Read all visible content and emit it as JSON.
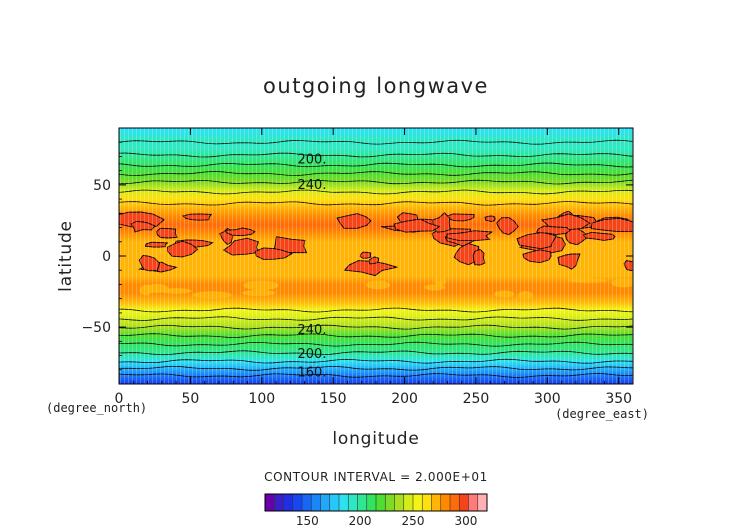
{
  "chart_data": {
    "type": "heatmap",
    "title": "outgoing longwave",
    "xlabel": "longitude",
    "ylabel": "latitude",
    "x_unit": "(degree_east)",
    "y_unit": "(degree_north)",
    "xlim": [
      0,
      360
    ],
    "ylim": [
      -90,
      90
    ],
    "x_ticks": [
      0,
      50,
      100,
      150,
      200,
      250,
      300,
      350
    ],
    "y_ticks": [
      -50,
      0,
      50
    ],
    "contour_interval_text": "CONTOUR INTERVAL = 2.000E+01",
    "contour_labels": [
      {
        "text": "200.",
        "lon": 125,
        "lat": 68
      },
      {
        "text": "240.",
        "lon": 125,
        "lat": 50
      },
      {
        "text": "240.",
        "lon": 125,
        "lat": -52
      },
      {
        "text": "200.",
        "lon": 125,
        "lat": -69
      },
      {
        "text": "160.",
        "lon": 125,
        "lat": -82
      }
    ],
    "zonal_mean_profile": {
      "latitudes": [
        88,
        82,
        76,
        70,
        64,
        58,
        52,
        46,
        40,
        34,
        28,
        22,
        16,
        10,
        4,
        -2,
        -8,
        -14,
        -20,
        -26,
        -32,
        -38,
        -44,
        -50,
        -56,
        -62,
        -68,
        -74,
        -80,
        -86,
        -89
      ],
      "olr": [
        185,
        190,
        196,
        200,
        207,
        217,
        230,
        245,
        262,
        272,
        282,
        286,
        280,
        276,
        274,
        273,
        275,
        274,
        278,
        278,
        270,
        258,
        246,
        236,
        222,
        210,
        200,
        187,
        163,
        150,
        142
      ]
    },
    "colorbar": {
      "tick_values": [
        150,
        200,
        250,
        300
      ],
      "vmin": 110,
      "vmax": 320,
      "colors": [
        "#6a00a8",
        "#3a1fc9",
        "#1f2fe6",
        "#1747f2",
        "#1866f5",
        "#1b86f8",
        "#20a8fa",
        "#27c7fb",
        "#2ce2f0",
        "#2ee8c4",
        "#2fe693",
        "#33e360",
        "#4cde32",
        "#7ddb25",
        "#a9df1e",
        "#d4ec18",
        "#f4f414",
        "#ffdf0d",
        "#ffb406",
        "#ff8a00",
        "#ff6a0a",
        "#f44418",
        "#ff7a7a",
        "#ffb0b0"
      ]
    }
  }
}
